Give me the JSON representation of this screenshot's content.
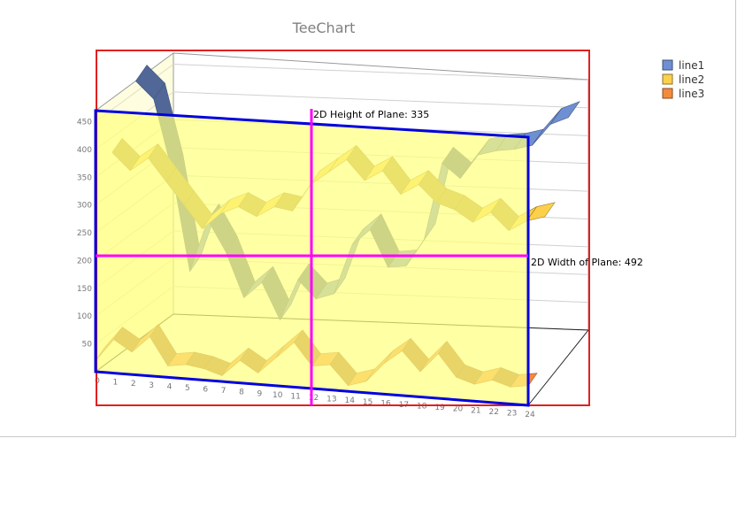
{
  "chart_data": {
    "type": "line",
    "title": "TeeChart",
    "view": "3d",
    "xlabel": "",
    "ylabel": "",
    "categories": [
      "0",
      "1",
      "2",
      "3",
      "4",
      "5",
      "6",
      "7",
      "8",
      "9",
      "10",
      "11",
      "12",
      "13",
      "14",
      "15",
      "16",
      "17",
      "18",
      "19",
      "20",
      "21",
      "22",
      "23",
      "24"
    ],
    "ylim": [
      0,
      470
    ],
    "yticks": [
      50,
      100,
      150,
      200,
      250,
      300,
      350,
      400,
      450
    ],
    "legend_position": "right",
    "series": [
      {
        "name": "line1",
        "color": "#6f8fd3",
        "values": [
          485,
          455,
          330,
          150,
          245,
          190,
          110,
          140,
          75,
          150,
          118,
          130,
          220,
          250,
          185,
          190,
          240,
          380,
          355,
          400,
          410,
          415,
          425,
          465,
          480
        ]
      },
      {
        "name": "line2",
        "color": "#fcd04b",
        "values": [
          385,
          355,
          380,
          340,
          300,
          260,
          290,
          305,
          290,
          310,
          305,
          355,
          380,
          405,
          370,
          390,
          350,
          370,
          340,
          330,
          310,
          330,
          300,
          320,
          330
        ]
      },
      {
        "name": "line3",
        "color": "#f48b3c",
        "values": [
          30,
          70,
          50,
          80,
          30,
          35,
          30,
          20,
          50,
          30,
          60,
          90,
          50,
          55,
          20,
          30,
          65,
          90,
          55,
          90,
          50,
          40,
          50,
          40,
          45
        ]
      }
    ],
    "annotations": [
      {
        "text": "2D Height of Plane: 335"
      },
      {
        "text": "2D Width of Plane: 492"
      }
    ],
    "overlay_colors": {
      "outer_rect": "#e02020",
      "plane_rect": "#0000e0",
      "crosshair": "#ff00ff",
      "plane_fill": "#ffff80"
    }
  }
}
